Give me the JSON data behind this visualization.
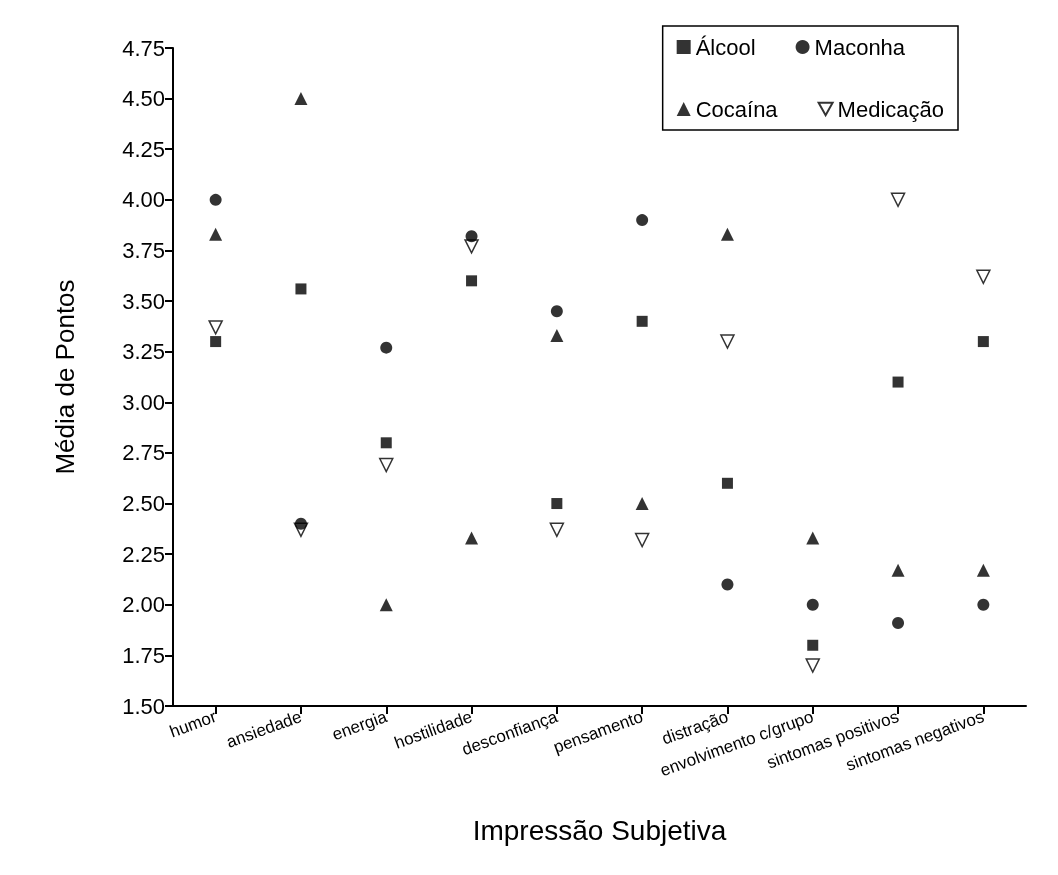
{
  "chart_data": {
    "type": "scatter",
    "xlabel": "Impressão Subjetiva",
    "ylabel": "Média de Pontos",
    "categories": [
      "humor",
      "ansiedade",
      "energia",
      "hostilidade",
      "desconfiança",
      "pensamento",
      "distração",
      "envolvimento c/grupo",
      "sintomas positivos",
      "sintomas negativos"
    ],
    "series": [
      {
        "name": "Álcool",
        "color": "#000000",
        "marker": "square",
        "values": [
          3.3,
          3.56,
          2.8,
          3.6,
          2.5,
          3.4,
          2.6,
          1.8,
          3.1,
          3.3
        ]
      },
      {
        "name": "Maconha",
        "color": "#000000",
        "marker": "circle",
        "values": [
          4.0,
          2.4,
          3.27,
          3.82,
          3.45,
          3.9,
          2.1,
          2.0,
          1.91,
          2.0
        ]
      },
      {
        "name": "Cocaína",
        "color": "#000000",
        "marker": "triangle",
        "values": [
          3.83,
          4.5,
          2.0,
          2.33,
          3.33,
          2.5,
          3.83,
          2.33,
          2.17,
          2.17
        ]
      },
      {
        "name": "Medicação",
        "color": "#000000",
        "marker": "triangle-down",
        "values": [
          3.37,
          2.37,
          2.69,
          3.77,
          2.37,
          2.32,
          3.3,
          1.7,
          4.0,
          3.62
        ]
      }
    ],
    "ylim": [
      1.5,
      4.75
    ],
    "yticks": [
      {
        "value": 1.5,
        "label": "1.50"
      },
      1.75,
      {
        "value": 2,
        "label": "2.00"
      },
      2.25,
      {
        "value": 2.5,
        "label": "2.50"
      },
      2.75,
      {
        "value": 3,
        "label": "3.00"
      },
      3.25,
      {
        "value": 3.5,
        "label": "3.50"
      },
      3.75,
      {
        "value": 4,
        "label": "4.00"
      },
      4.25,
      {
        "value": 4.5,
        "label": "4.50"
      },
      4.75
    ],
    "grid": false,
    "legend": "top right"
  }
}
